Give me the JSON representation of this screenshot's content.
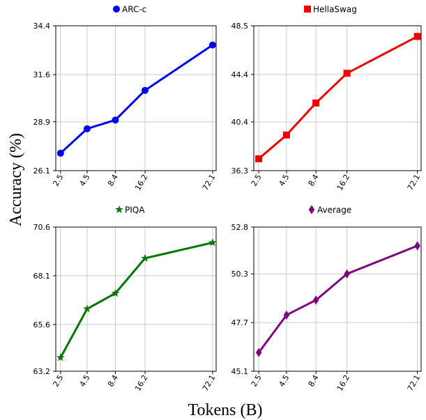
{
  "figure": {
    "ylabel": "Accuracy (%)",
    "xlabel": "Tokens (B)"
  },
  "chart_data": [
    {
      "type": "line",
      "series": [
        {
          "name": "ARC-c",
          "color": "#0000ee",
          "marker": "circle",
          "values": [
            27.1,
            28.5,
            29.0,
            30.7,
            33.3
          ]
        }
      ],
      "x": [
        2.5,
        4.5,
        8.4,
        16.2,
        72.1
      ],
      "x_tick_labels": [
        "2.5",
        "4.5",
        "8.4",
        "16.2",
        "72.1"
      ],
      "y_ticks": [
        26.1,
        28.9,
        31.6,
        34.4
      ],
      "y_tick_labels": [
        "26.1",
        "28.9",
        "31.6",
        "34.4"
      ],
      "ylim": [
        26.1,
        34.4
      ],
      "x_scale": "log",
      "grid": true,
      "legend": "top"
    },
    {
      "type": "line",
      "series": [
        {
          "name": "HellaSwag",
          "color": "#ee0000",
          "marker": "square",
          "values": [
            37.3,
            39.3,
            42.0,
            44.5,
            47.6
          ]
        }
      ],
      "x": [
        2.5,
        4.5,
        8.4,
        16.2,
        72.1
      ],
      "x_tick_labels": [
        "2.5",
        "4.5",
        "8.4",
        "16.2",
        "72.1"
      ],
      "y_ticks": [
        36.3,
        40.4,
        44.4,
        48.5
      ],
      "y_tick_labels": [
        "36.3",
        "40.4",
        "44.4",
        "48.5"
      ],
      "ylim": [
        36.3,
        48.5
      ],
      "x_scale": "log",
      "grid": true,
      "legend": "top"
    },
    {
      "type": "line",
      "series": [
        {
          "name": "PIQA",
          "color": "#007700",
          "marker": "star",
          "values": [
            63.9,
            66.4,
            67.2,
            69.0,
            69.8
          ]
        }
      ],
      "x": [
        2.5,
        4.5,
        8.4,
        16.2,
        72.1
      ],
      "x_tick_labels": [
        "2.5",
        "4.5",
        "8.4",
        "16.2",
        "72.1"
      ],
      "y_ticks": [
        63.2,
        65.6,
        68.1,
        70.6
      ],
      "y_tick_labels": [
        "63.2",
        "65.6",
        "68.1",
        "70.6"
      ],
      "ylim": [
        63.2,
        70.6
      ],
      "x_scale": "log",
      "grid": true,
      "legend": "top"
    },
    {
      "type": "line",
      "series": [
        {
          "name": "Average",
          "color": "#800080",
          "marker": "diamond",
          "values": [
            46.1,
            48.1,
            48.9,
            50.3,
            51.8
          ]
        }
      ],
      "x": [
        2.5,
        4.5,
        8.4,
        16.2,
        72.1
      ],
      "x_tick_labels": [
        "2.5",
        "4.5",
        "8.4",
        "16.2",
        "72.1"
      ],
      "y_ticks": [
        45.1,
        47.7,
        50.3,
        52.8
      ],
      "y_tick_labels": [
        "45.1",
        "47.7",
        "50.3",
        "52.8"
      ],
      "ylim": [
        45.1,
        52.8
      ],
      "x_scale": "log",
      "grid": true,
      "legend": "top"
    }
  ]
}
